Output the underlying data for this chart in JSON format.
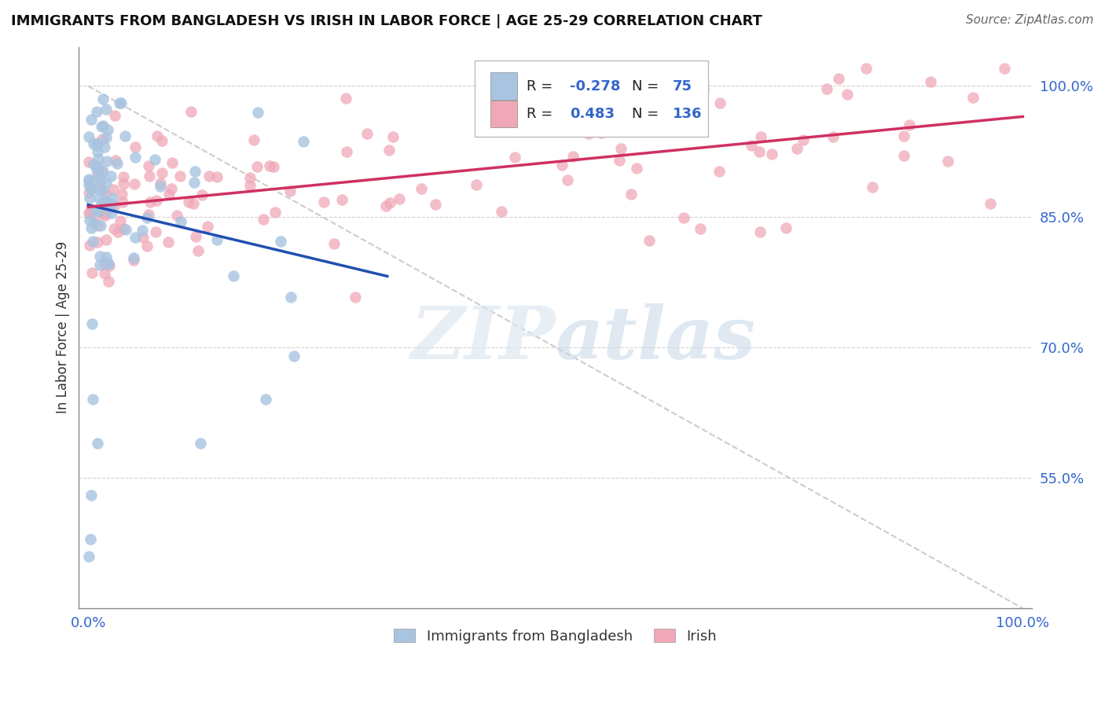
{
  "title": "IMMIGRANTS FROM BANGLADESH VS IRISH IN LABOR FORCE | AGE 25-29 CORRELATION CHART",
  "source": "Source: ZipAtlas.com",
  "ylabel": "In Labor Force | Age 25-29",
  "xlim": [
    0.0,
    1.0
  ],
  "ylim": [
    0.4,
    1.04
  ],
  "x_tick_labels": [
    "0.0%",
    "100.0%"
  ],
  "y_tick_labels": [
    "55.0%",
    "70.0%",
    "85.0%",
    "100.0%"
  ],
  "y_tick_values": [
    0.55,
    0.7,
    0.85,
    1.0
  ],
  "legend_labels": [
    "Immigrants from Bangladesh",
    "Irish"
  ],
  "r_bangladesh": -0.278,
  "n_bangladesh": 75,
  "r_irish": 0.483,
  "n_irish": 136,
  "blue_color": "#a8c4e0",
  "pink_color": "#f0a8b8",
  "blue_line_color": "#2050b0",
  "pink_line_color": "#d03060",
  "watermark_zip": "ZIP",
  "watermark_atlas": "atlas",
  "background_color": "#ffffff",
  "grid_color": "#cccccc"
}
